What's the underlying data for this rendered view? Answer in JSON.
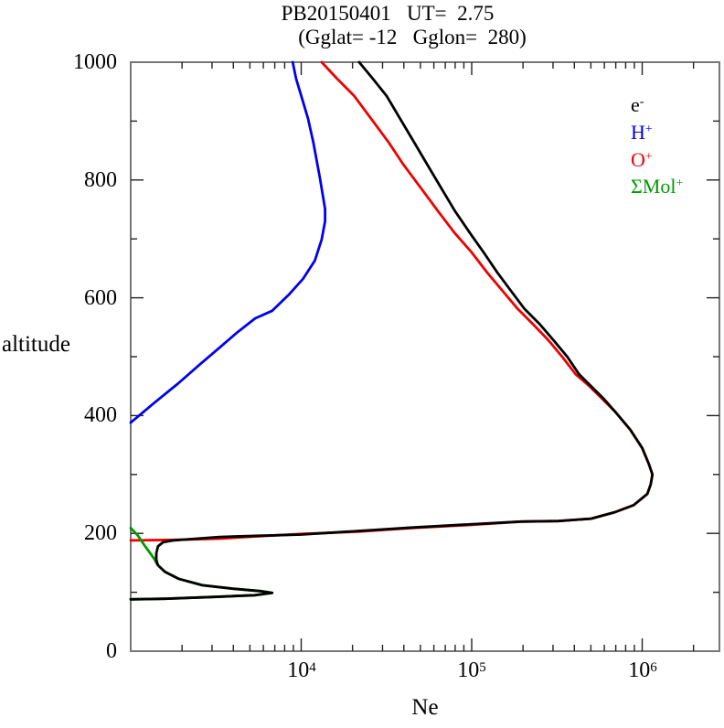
{
  "title": {
    "line1": "PB20150401   UT=  2.75",
    "line2": "(Gglat= -12   Gglon=  280)"
  },
  "axes": {
    "x": {
      "label": "Ne",
      "scale": "log",
      "tick_labels": [
        {
          "base": "10",
          "exp": "4"
        },
        {
          "base": "10",
          "exp": "5"
        },
        {
          "base": "10",
          "exp": "6"
        }
      ],
      "major_log10": [
        4,
        5,
        6
      ],
      "minor_log10": [
        3.301,
        3.477,
        3.602,
        3.699,
        3.778,
        3.845,
        3.903,
        3.954,
        4.301,
        4.477,
        4.602,
        4.699,
        4.778,
        4.845,
        4.903,
        4.954,
        5.301,
        5.477,
        5.602,
        5.699,
        5.778,
        5.845,
        5.903,
        5.954,
        6.301
      ]
    },
    "y": {
      "label": "altitude",
      "tick_labels": [
        "1000",
        "800",
        "600",
        "400",
        "200",
        "0"
      ],
      "major": [
        1000,
        800,
        600,
        400,
        200,
        0
      ],
      "minor": [
        900,
        700,
        500,
        300,
        100
      ]
    }
  },
  "legend": {
    "items": [
      {
        "base": "e",
        "sup": "-",
        "color": "#000000"
      },
      {
        "base": "H",
        "sup": "+",
        "color": "#0000ee"
      },
      {
        "base": "O",
        "sup": "+",
        "color": "#ee0000"
      },
      {
        "base": "ΣMol",
        "sup": "+",
        "color": "#009900"
      }
    ]
  },
  "colors": {
    "frame": "#777777",
    "ticks": "#222222",
    "electron": "#000000",
    "h_plus": "#0000ee",
    "o_plus": "#ee0000",
    "mol_plus": "#009900"
  },
  "chart_data": {
    "type": "line",
    "title": "PB20150401 UT= 2.75 (Gglat= -12 Gglon= 280)",
    "xlabel": "Ne",
    "ylabel": "altitude",
    "x_scale": "log10",
    "x_range_log10": [
      3.0,
      6.453
    ],
    "y_range": [
      0,
      1000
    ],
    "grid": false,
    "legend_position": "upper right",
    "series": [
      {
        "name": "e-",
        "color": "#000000",
        "points_log10ne_alt": [
          [
            4.34,
            1000
          ],
          [
            4.42,
            972
          ],
          [
            4.5,
            943
          ],
          [
            4.58,
            904
          ],
          [
            4.66,
            865
          ],
          [
            4.74,
            826
          ],
          [
            4.82,
            787
          ],
          [
            4.9,
            748
          ],
          [
            4.99,
            710
          ],
          [
            5.07,
            677
          ],
          [
            5.15,
            643
          ],
          [
            5.23,
            612
          ],
          [
            5.31,
            581
          ],
          [
            5.4,
            555
          ],
          [
            5.48,
            528
          ],
          [
            5.56,
            500
          ],
          [
            5.63,
            470
          ],
          [
            5.7,
            450
          ],
          [
            5.77,
            430
          ],
          [
            5.84,
            407
          ],
          [
            5.93,
            376
          ],
          [
            6.0,
            345
          ],
          [
            6.04,
            317
          ],
          [
            6.06,
            300
          ],
          [
            6.05,
            283
          ],
          [
            6.03,
            267
          ],
          [
            5.95,
            248
          ],
          [
            5.84,
            236
          ],
          [
            5.7,
            225
          ],
          [
            5.51,
            221
          ],
          [
            5.29,
            220
          ],
          [
            4.97,
            215
          ],
          [
            4.65,
            210
          ],
          [
            4.33,
            204
          ],
          [
            4.0,
            198
          ],
          [
            3.75,
            196
          ],
          [
            3.52,
            194
          ],
          [
            3.25,
            188
          ],
          [
            3.19,
            185
          ],
          [
            3.16,
            178
          ],
          [
            3.15,
            166
          ],
          [
            3.15,
            155
          ],
          [
            3.16,
            146
          ],
          [
            3.2,
            135
          ],
          [
            3.28,
            123
          ],
          [
            3.42,
            112
          ],
          [
            3.6,
            106
          ],
          [
            3.76,
            102
          ],
          [
            3.83,
            99
          ],
          [
            3.73,
            95
          ],
          [
            3.47,
            92
          ],
          [
            3.2,
            89
          ],
          [
            3.0,
            88
          ]
        ]
      },
      {
        "name": "H+",
        "color": "#0000ee",
        "points_log10ne_alt": [
          [
            3.95,
            1000
          ],
          [
            3.97,
            972
          ],
          [
            4.0,
            943
          ],
          [
            4.04,
            904
          ],
          [
            4.07,
            865
          ],
          [
            4.11,
            803
          ],
          [
            4.14,
            751
          ],
          [
            4.14,
            730
          ],
          [
            4.12,
            699
          ],
          [
            4.08,
            663
          ],
          [
            4.01,
            632
          ],
          [
            3.93,
            606
          ],
          [
            3.83,
            578
          ],
          [
            3.73,
            565
          ],
          [
            3.62,
            540
          ],
          [
            3.54,
            520
          ],
          [
            3.41,
            488
          ],
          [
            3.28,
            455
          ],
          [
            3.14,
            422
          ],
          [
            3.0,
            388
          ]
        ]
      },
      {
        "name": "O+",
        "color": "#ee0000",
        "points_log10ne_alt": [
          [
            4.12,
            1000
          ],
          [
            4.21,
            972
          ],
          [
            4.31,
            943
          ],
          [
            4.41,
            904
          ],
          [
            4.51,
            865
          ],
          [
            4.6,
            826
          ],
          [
            4.7,
            787
          ],
          [
            4.8,
            748
          ],
          [
            4.9,
            710
          ],
          [
            5.0,
            677
          ],
          [
            5.09,
            643
          ],
          [
            5.18,
            612
          ],
          [
            5.27,
            581
          ],
          [
            5.36,
            555
          ],
          [
            5.45,
            528
          ],
          [
            5.53,
            500
          ],
          [
            5.61,
            470
          ],
          [
            5.69,
            450
          ],
          [
            5.76,
            430
          ],
          [
            5.84,
            407
          ],
          [
            5.93,
            376
          ],
          [
            6.0,
            345
          ],
          [
            6.04,
            317
          ],
          [
            6.06,
            300
          ],
          [
            6.05,
            283
          ],
          [
            6.03,
            267
          ],
          [
            5.95,
            248
          ],
          [
            5.84,
            236
          ],
          [
            5.7,
            225
          ],
          [
            5.51,
            221
          ],
          [
            5.29,
            220
          ],
          [
            4.97,
            214
          ],
          [
            4.65,
            209
          ],
          [
            4.33,
            203
          ],
          [
            4.0,
            199
          ],
          [
            3.75,
            195
          ],
          [
            3.52,
            191
          ],
          [
            3.25,
            189
          ],
          [
            3.0,
            188
          ]
        ]
      },
      {
        "name": "ΣMol+",
        "color": "#009900",
        "points_log10ne_alt": [
          [
            3.0,
            209
          ],
          [
            3.04,
            197
          ],
          [
            3.08,
            180
          ],
          [
            3.11,
            168
          ],
          [
            3.14,
            156
          ],
          [
            3.15,
            150
          ],
          [
            3.16,
            146
          ],
          [
            3.2,
            135
          ],
          [
            3.28,
            123
          ],
          [
            3.42,
            112
          ],
          [
            3.6,
            106
          ],
          [
            3.76,
            102
          ],
          [
            3.83,
            99
          ],
          [
            3.73,
            95
          ],
          [
            3.47,
            92
          ],
          [
            3.2,
            89
          ],
          [
            3.0,
            88
          ]
        ]
      }
    ]
  }
}
